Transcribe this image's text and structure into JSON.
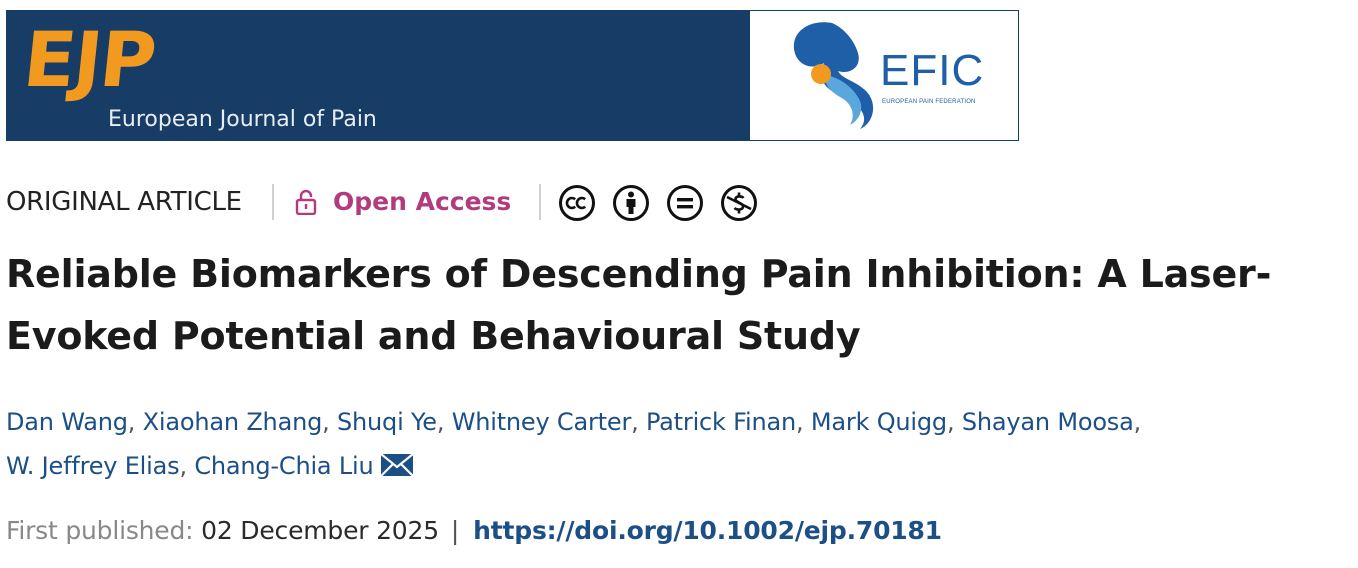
{
  "banner": {
    "logo_text": "EJP",
    "journal_name": "European Journal of Pain",
    "partner_logo_text": "EFIC",
    "partner_logo_subtext": "EUROPEAN PAIN FEDERATION",
    "colors": {
      "banner_bg": "#173c66",
      "logo_orange": "#f29a20",
      "efic_blue": "#1e5fa8"
    }
  },
  "meta": {
    "article_type": "ORIGINAL ARTICLE",
    "access_label": "Open Access",
    "access_icon": "unlocked-padlock-icon",
    "access_color": "#b13b7c",
    "license_icons": [
      "cc-icon",
      "by-attribution-icon",
      "nd-no-derivatives-icon",
      "nc-non-commercial-icon"
    ]
  },
  "article": {
    "title_line1": "Reliable Biomarkers of Descending Pain Inhibition: A Laser-",
    "title_line2": "Evoked Potential and Behavioural Study",
    "authors": [
      "Dan Wang",
      "Xiaohan Zhang",
      "Shuqi Ye",
      "Whitney Carter",
      "Patrick Finan",
      "Mark Quigg",
      "Shayan Moosa",
      "W. Jeffrey Elias",
      "Chang-Chia Liu"
    ],
    "separator": ",",
    "corresponding_icon": "envelope-icon"
  },
  "publication": {
    "label": "First published:",
    "date": "02 December 2025",
    "separator": "|",
    "doi": "https://doi.org/10.1002/ejp.70181"
  }
}
